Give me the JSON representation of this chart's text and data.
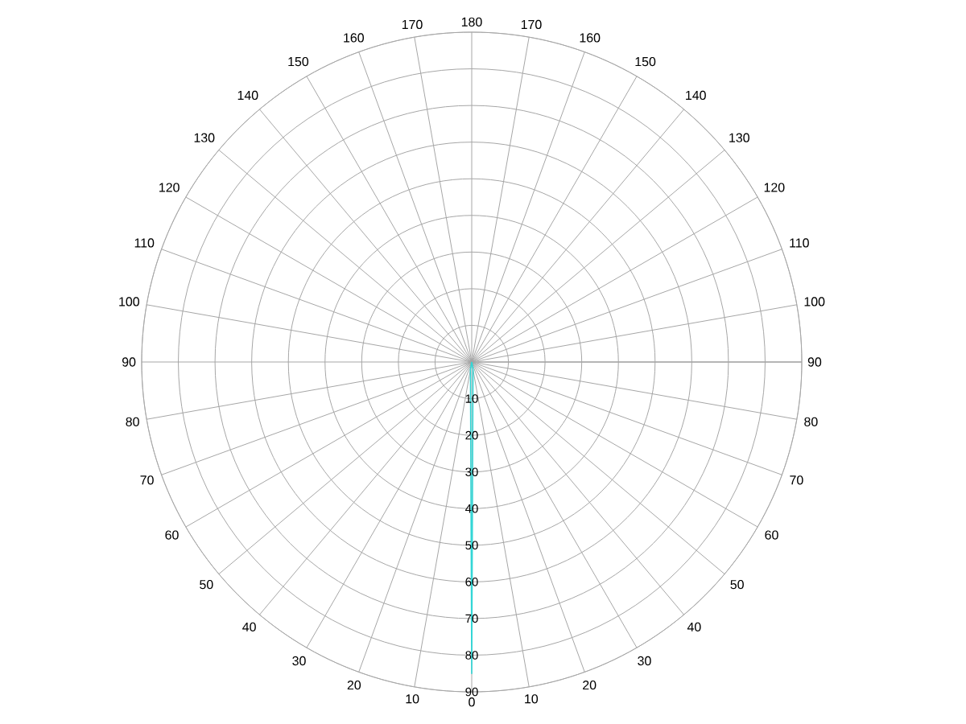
{
  "chart_data": {
    "type": "radar",
    "categories": [
      "180",
      "170",
      "160",
      "150",
      "140",
      "130",
      "120",
      "110",
      "100",
      "90",
      "80",
      "70",
      "60",
      "50",
      "40",
      "30",
      "20",
      "10",
      "0",
      "10",
      "20",
      "30",
      "40",
      "50",
      "60",
      "70",
      "80",
      "90",
      "100",
      "110",
      "120",
      "130",
      "140",
      "150",
      "160",
      "170"
    ],
    "series": [
      {
        "color": "#33d6d6",
        "values": [
          0,
          0,
          0,
          0,
          0,
          0,
          0,
          0,
          0,
          0,
          0,
          0,
          0,
          0,
          0,
          0,
          0,
          2,
          85,
          2,
          0,
          0,
          0,
          0,
          0,
          0,
          0,
          0,
          0,
          0,
          0,
          0,
          0,
          0,
          0,
          0
        ]
      }
    ],
    "ylim": [
      0,
      90
    ],
    "yticks": [
      10,
      20,
      30,
      40,
      50,
      60,
      70,
      80,
      90
    ],
    "grid": true
  }
}
